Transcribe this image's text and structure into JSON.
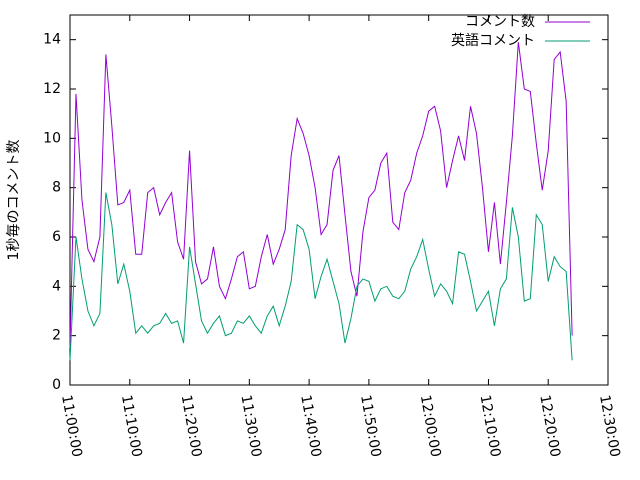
{
  "chart_data": {
    "type": "line",
    "ylabel": "1秒毎のコメント数",
    "x": [
      "11:00:00",
      "11:01:00",
      "11:02:00",
      "11:03:00",
      "11:04:00",
      "11:05:00",
      "11:06:00",
      "11:07:00",
      "11:08:00",
      "11:09:00",
      "11:10:00",
      "11:11:00",
      "11:12:00",
      "11:13:00",
      "11:14:00",
      "11:15:00",
      "11:16:00",
      "11:17:00",
      "11:18:00",
      "11:19:00",
      "11:20:00",
      "11:21:00",
      "11:22:00",
      "11:23:00",
      "11:24:00",
      "11:25:00",
      "11:26:00",
      "11:27:00",
      "11:28:00",
      "11:29:00",
      "11:30:00",
      "11:31:00",
      "11:32:00",
      "11:33:00",
      "11:34:00",
      "11:35:00",
      "11:36:00",
      "11:37:00",
      "11:38:00",
      "11:39:00",
      "11:40:00",
      "11:41:00",
      "11:42:00",
      "11:43:00",
      "11:44:00",
      "11:45:00",
      "11:46:00",
      "11:47:00",
      "11:48:00",
      "11:49:00",
      "11:50:00",
      "11:51:00",
      "11:52:00",
      "11:53:00",
      "11:54:00",
      "11:55:00",
      "11:56:00",
      "11:57:00",
      "11:58:00",
      "11:59:00",
      "12:00:00",
      "12:01:00",
      "12:02:00",
      "12:03:00",
      "12:04:00",
      "12:05:00",
      "12:06:00",
      "12:07:00",
      "12:08:00",
      "12:09:00",
      "12:10:00",
      "12:11:00",
      "12:12:00",
      "12:13:00",
      "12:14:00",
      "12:15:00",
      "12:16:00",
      "12:17:00",
      "12:18:00",
      "12:19:00",
      "12:20:00",
      "12:21:00",
      "12:22:00",
      "12:23:00",
      "12:24:00"
    ],
    "series": [
      {
        "name": "コメント数",
        "color": "#9400d3",
        "values": [
          1.5,
          11.8,
          7.5,
          5.5,
          5.0,
          6.0,
          13.4,
          10.5,
          7.3,
          7.4,
          7.9,
          5.3,
          5.3,
          7.8,
          8.0,
          6.9,
          7.4,
          7.8,
          5.8,
          5.1,
          9.5,
          5.0,
          4.1,
          4.3,
          5.6,
          4.0,
          3.5,
          4.3,
          5.2,
          5.4,
          3.9,
          4.0,
          5.2,
          6.1,
          4.9,
          5.5,
          6.3,
          9.3,
          10.8,
          10.2,
          9.3,
          8.0,
          6.1,
          6.5,
          8.7,
          9.3,
          6.9,
          4.6,
          3.6,
          6.2,
          7.6,
          7.9,
          9.0,
          9.4,
          6.6,
          6.3,
          7.8,
          8.3,
          9.4,
          10.1,
          11.1,
          11.3,
          10.3,
          8.0,
          9.1,
          10.1,
          9.1,
          11.3,
          10.2,
          8.0,
          5.4,
          7.4,
          4.9,
          7.4,
          10.1,
          13.9,
          12.0,
          11.9,
          9.8,
          7.9,
          9.5,
          13.2,
          13.5,
          11.5,
          2.0
        ]
      },
      {
        "name": "英語コメント",
        "color": "#009e73",
        "values": [
          1.0,
          6.0,
          4.3,
          3.0,
          2.4,
          2.9,
          7.8,
          6.5,
          4.1,
          4.9,
          3.8,
          2.1,
          2.4,
          2.1,
          2.4,
          2.5,
          2.9,
          2.5,
          2.6,
          1.7,
          5.6,
          4.1,
          2.6,
          2.1,
          2.5,
          2.8,
          2.0,
          2.1,
          2.6,
          2.5,
          2.8,
          2.4,
          2.1,
          2.8,
          3.2,
          2.4,
          3.2,
          4.2,
          6.5,
          6.3,
          5.5,
          3.5,
          4.4,
          5.1,
          4.2,
          3.3,
          1.7,
          2.7,
          4.0,
          4.3,
          4.2,
          3.4,
          3.9,
          4.0,
          3.6,
          3.5,
          3.8,
          4.7,
          5.2,
          5.9,
          4.7,
          3.6,
          4.1,
          3.8,
          3.3,
          5.4,
          5.3,
          4.2,
          3.0,
          3.4,
          3.8,
          2.4,
          3.9,
          4.3,
          7.2,
          6.0,
          3.4,
          3.5,
          6.9,
          6.5,
          4.2,
          5.2,
          4.8,
          4.6,
          1.0
        ]
      }
    ],
    "xlim": [
      "11:00:00",
      "12:30:00"
    ],
    "xticks": [
      "11:00:00",
      "11:10:00",
      "11:20:00",
      "11:30:00",
      "11:40:00",
      "11:50:00",
      "12:00:00",
      "12:10:00",
      "12:20:00",
      "12:30:00"
    ],
    "ylim": [
      0,
      15
    ],
    "yticks": [
      0,
      2,
      4,
      6,
      8,
      10,
      12,
      14
    ],
    "legend": "top-right"
  }
}
